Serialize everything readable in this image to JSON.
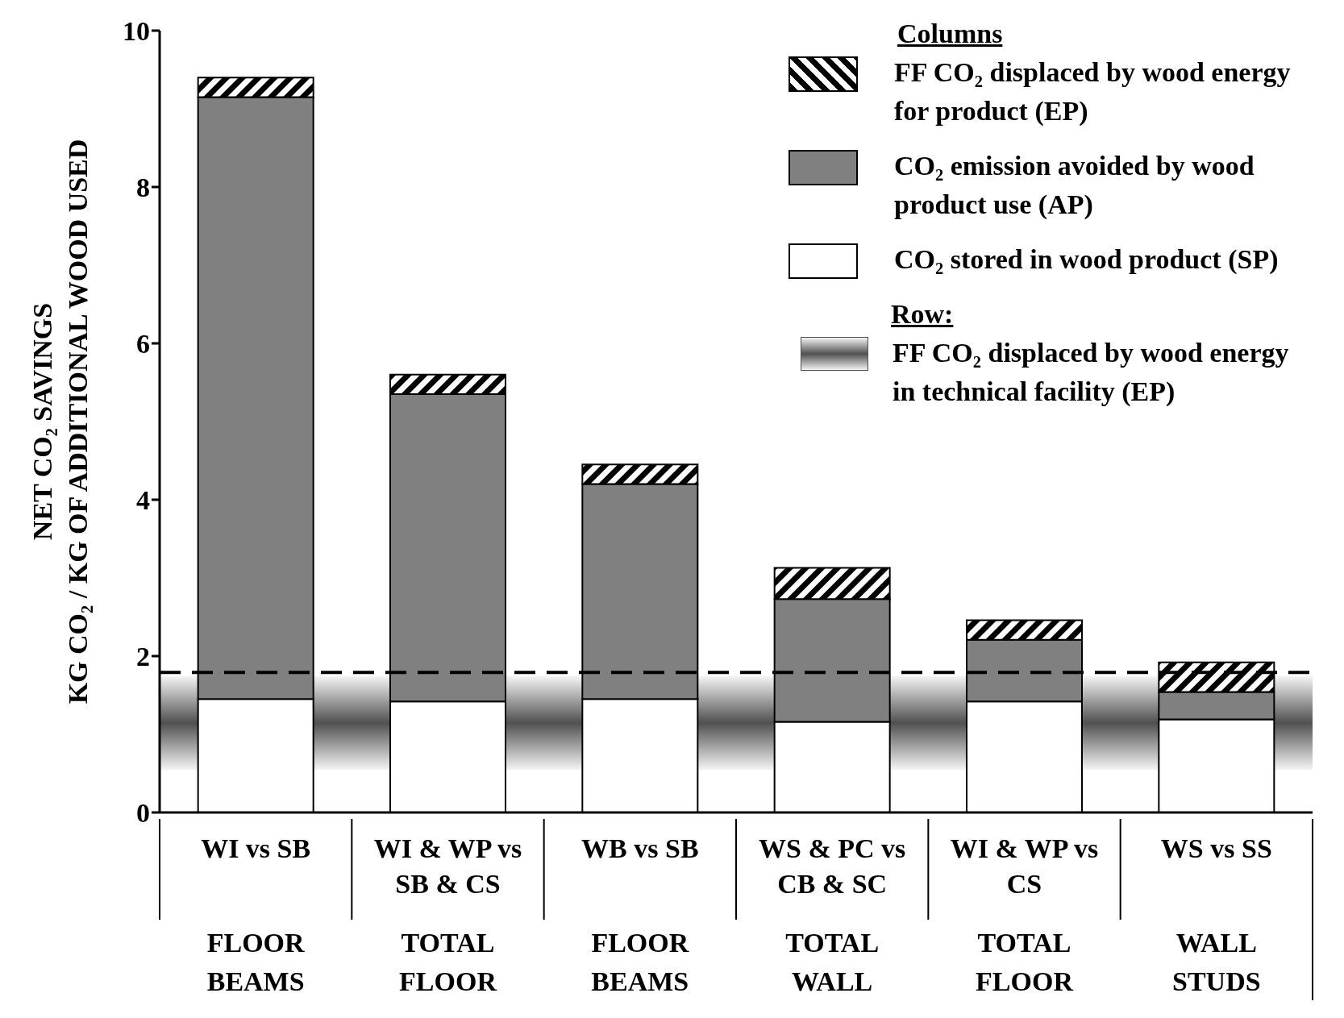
{
  "chart_data": {
    "type": "bar",
    "stacked": true,
    "ylabel": "NET CO₂ SAVINGS\nKG CO₂ / KG OF ADDITIONAL WOOD USED",
    "legend_title": "Columns",
    "categories": [
      "WI vs SB",
      "WI & WP vs SB & CS",
      "WB vs SB",
      "WS & PC vs CB & SC",
      "WI & WP vs CS",
      "WS vs SS"
    ],
    "series": [
      {
        "name": "CO₂ stored in wood product (SP)",
        "color": "#ffffff",
        "values": [
          1.45,
          1.42,
          1.45,
          1.16,
          1.42,
          1.19
        ]
      },
      {
        "name": "CO₂ emission avoided by wood product use (AP)",
        "color": "#808080",
        "values": [
          7.7,
          3.93,
          2.75,
          1.57,
          0.79,
          0.35
        ]
      },
      {
        "name": "FF CO₂ displaced by wood energy for product (EP)",
        "color": "#000000",
        "values": [
          0.25,
          0.25,
          0.25,
          0.4,
          0.25,
          0.38
        ]
      }
    ],
    "bands": [
      {
        "axis": "y",
        "from": 0.54,
        "to": 1.75,
        "label": "FF CO₂ displaced by wood energy in technical facility (EP)",
        "color": "#505050"
      }
    ],
    "ref_lines": [
      {
        "axis": "y",
        "value": 1.79,
        "color": "#000000",
        "line_style": "dashed"
      }
    ],
    "annotations": [
      "FLOOR BEAMS",
      "TOTAL FLOOR",
      "FLOOR BEAMS",
      "TOTAL WALL",
      "TOTAL FLOOR",
      "WALL STUDS",
      "Row:"
    ],
    "ylim": [
      0,
      10
    ],
    "yticks": [
      0,
      2,
      4,
      6,
      8,
      10
    ],
    "legend": "top right"
  }
}
